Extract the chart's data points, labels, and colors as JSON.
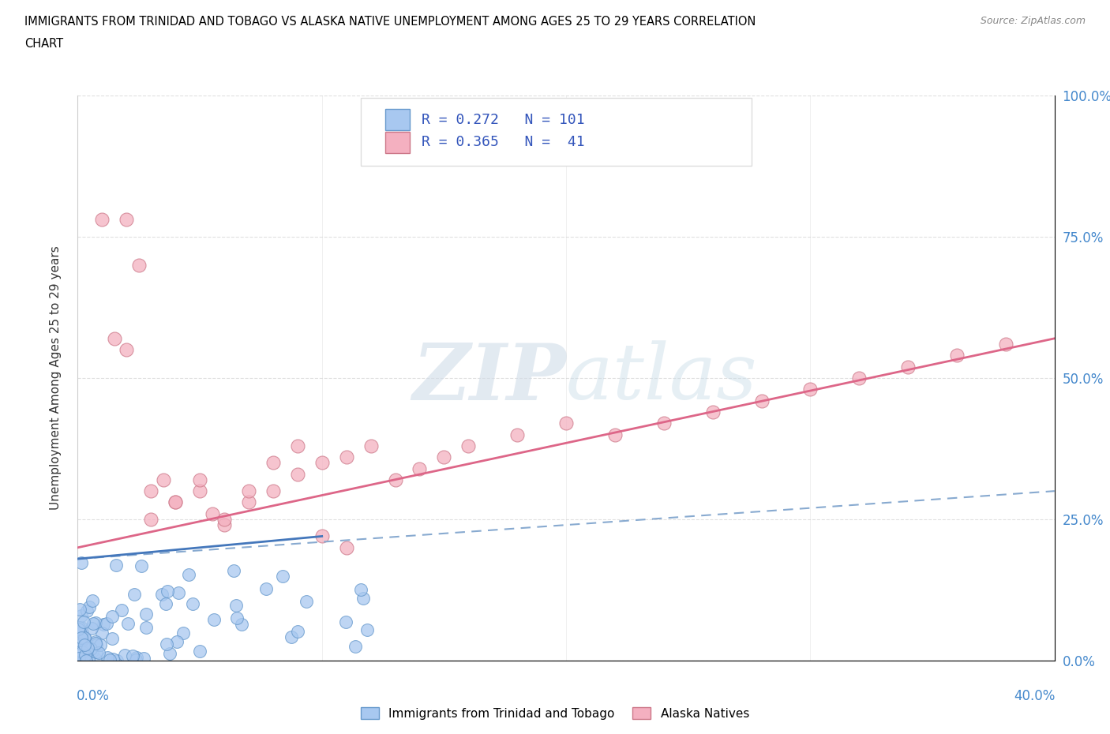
{
  "title_line1": "IMMIGRANTS FROM TRINIDAD AND TOBAGO VS ALASKA NATIVE UNEMPLOYMENT AMONG AGES 25 TO 29 YEARS CORRELATION",
  "title_line2": "CHART",
  "source_text": "Source: ZipAtlas.com",
  "ylabel_label": "Unemployment Among Ages 25 to 29 years",
  "ytick_values": [
    0.0,
    25.0,
    50.0,
    75.0,
    100.0
  ],
  "xlim": [
    0.0,
    40.0
  ],
  "ylim": [
    0.0,
    100.0
  ],
  "blue_R": 0.272,
  "blue_N": 101,
  "pink_R": 0.365,
  "pink_N": 41,
  "blue_color": "#a8c8f0",
  "blue_edge_color": "#6699cc",
  "pink_color": "#f4b0c0",
  "pink_edge_color": "#cc7788",
  "blue_solid_line_color": "#4477bb",
  "blue_dashed_line_color": "#88aad0",
  "pink_line_color": "#dd6688",
  "watermark_color": "#d0dce8",
  "legend_label_blue": "Immigrants from Trinidad and Tobago",
  "legend_label_pink": "Alaska Natives",
  "blue_text_color": "#3355bb",
  "pink_text_color": "#cc4466",
  "axis_label_color": "#4488cc",
  "grid_color": "#cccccc",
  "seed": 42
}
